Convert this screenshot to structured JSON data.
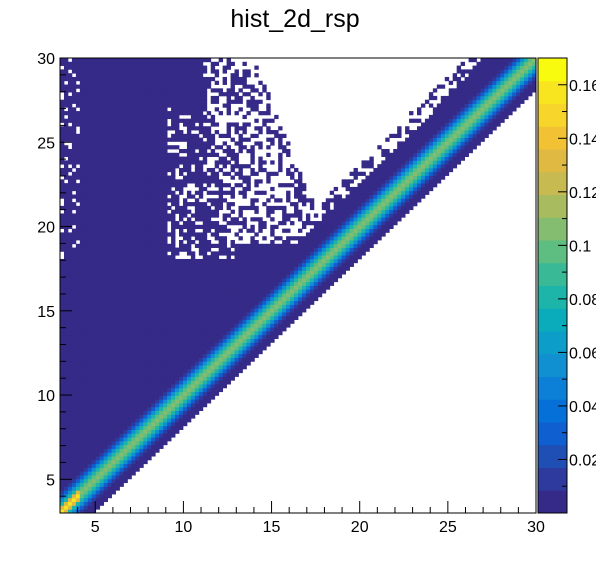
{
  "chart_data": {
    "type": "heatmap",
    "title": "hist_2d_rsp",
    "xlabel": "",
    "ylabel": "",
    "xlim": [
      3,
      30
    ],
    "ylim": [
      3,
      30
    ],
    "x_ticks": [
      5,
      10,
      15,
      20,
      25,
      30
    ],
    "y_ticks": [
      5,
      10,
      15,
      20,
      25,
      30
    ],
    "colorbar": {
      "range": [
        0,
        0.17
      ],
      "tick_values": [
        0.02,
        0.04,
        0.06,
        0.08,
        0.1,
        0.12,
        0.14,
        0.16
      ],
      "tick_labels": [
        "0.02",
        "0.04",
        "0.06",
        "0.08",
        "0.1",
        "0.12",
        "0.14",
        "0.16"
      ],
      "palette": [
        "#352a87",
        "#2f3a9e",
        "#1f4fb4",
        "#0f5fd0",
        "#0571d8",
        "#0b80d6",
        "#1090d1",
        "#0c9ec8",
        "#0aabbb",
        "#1db4a9",
        "#3ab996",
        "#5ebd81",
        "#84bd6f",
        "#a8bc5f",
        "#c6ba51",
        "#e0b943",
        "#f2c234",
        "#f8d52a",
        "#f9e51f",
        "#f9fb0e"
      ]
    },
    "z_description_values": {
      "background": 0.001,
      "diagonal_peak": 0.11,
      "low_edge_peak": 0.16
    }
  }
}
